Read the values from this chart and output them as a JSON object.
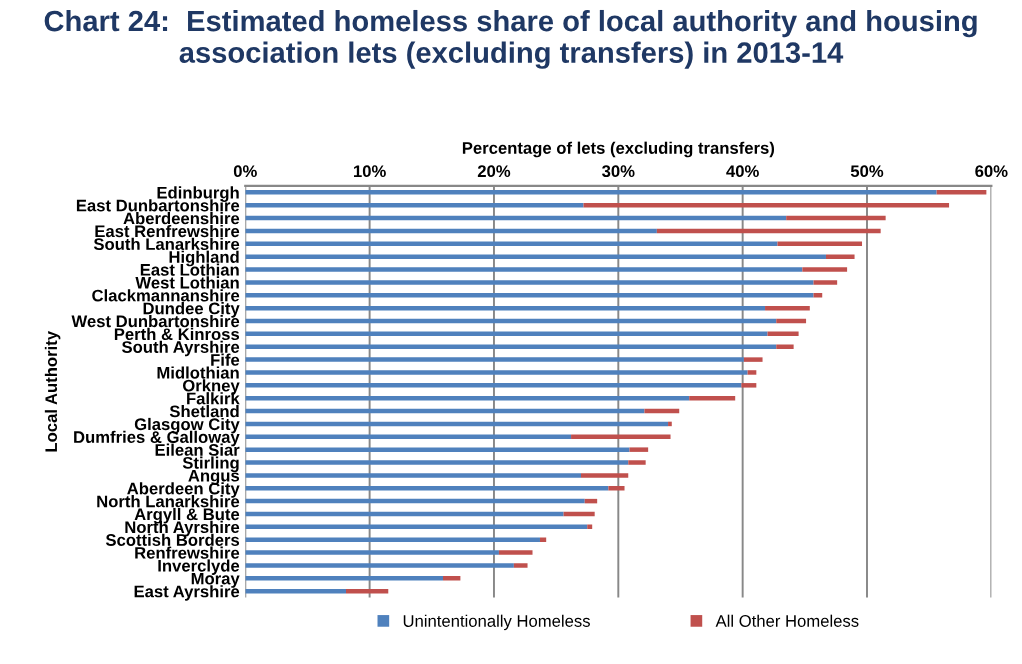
{
  "chart_data": {
    "type": "bar",
    "orientation": "horizontal",
    "stacked": true,
    "title": "Chart 24:  Estimated homeless share of local authority and housing\nassociation lets (excluding transfers) in 2013-14",
    "xlabel": "Percentage of lets (excluding transfers)",
    "ylabel": "Local Authority",
    "categories": [
      "Edinburgh",
      "East Dunbartonshire",
      "Aberdeenshire",
      "East Renfrewshire",
      "South Lanarkshire",
      "Highland",
      "East Lothian",
      "West Lothian",
      "Clackmannanshire",
      "Dundee City",
      "West Dunbartonshire",
      "Perth & Kinross",
      "South Ayrshire",
      "Fife",
      "Midlothian",
      "Orkney",
      "Falkirk",
      "Shetland",
      "Glasgow City",
      "Dumfries & Galloway",
      "Eilean Siar",
      "Stirling",
      "Angus",
      "Aberdeen City",
      "North Lanarkshire",
      "Argyll & Bute",
      "North Ayrshire",
      "Scottish Borders",
      "Renfrewshire",
      "Inverclyde",
      "Moray",
      "East Ayrshire"
    ],
    "series": [
      {
        "name": "Unintentionally Homeless",
        "color": "#4f81bd",
        "values": [
          55.6,
          27.2,
          43.5,
          33.1,
          42.8,
          46.7,
          44.8,
          45.7,
          45.7,
          41.8,
          42.7,
          42.0,
          42.7,
          40.1,
          40.4,
          39.9,
          35.7,
          32.1,
          34.0,
          26.2,
          30.9,
          30.8,
          27.0,
          29.2,
          27.3,
          25.6,
          27.5,
          23.7,
          20.4,
          21.6,
          15.9,
          8.1
        ]
      },
      {
        "name": "All Other Homeless",
        "color": "#c0504d",
        "values": [
          4.0,
          29.4,
          8.0,
          18.0,
          6.8,
          2.3,
          3.6,
          1.9,
          0.7,
          3.6,
          2.4,
          2.5,
          1.4,
          1.5,
          0.7,
          1.2,
          3.7,
          2.8,
          0.3,
          8.0,
          1.5,
          1.4,
          3.8,
          1.3,
          1.0,
          2.5,
          0.4,
          0.5,
          2.7,
          1.1,
          1.4,
          3.4
        ]
      }
    ],
    "xlim": [
      0,
      60
    ],
    "xticks": [
      {
        "value": 0,
        "label": "0%"
      },
      {
        "value": 10,
        "label": "10%"
      },
      {
        "value": 20,
        "label": "20%"
      },
      {
        "value": 30,
        "label": "30%"
      },
      {
        "value": 40,
        "label": "40%"
      },
      {
        "value": 50,
        "label": "50%"
      },
      {
        "value": 60,
        "label": "60%"
      }
    ],
    "grid": "x",
    "legend": "bottom"
  }
}
